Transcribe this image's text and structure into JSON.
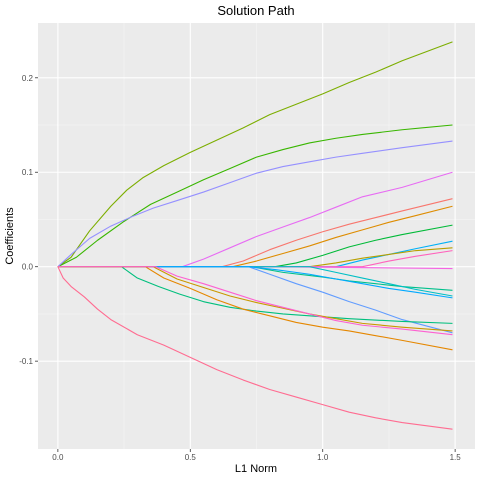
{
  "chart_data": {
    "type": "line",
    "title": "Solution Path",
    "xlabel": "L1 Norm",
    "ylabel": "Coefficients",
    "xlim": [
      -0.075,
      1.575
    ],
    "ylim": [
      -0.193,
      0.258
    ],
    "x_ticks": [
      0,
      0.5,
      1,
      1.5
    ],
    "x_tick_labels": [
      "0.0",
      "0.5",
      "1.0",
      "1.5"
    ],
    "y_ticks": [
      -0.1,
      0,
      0.1,
      0.2
    ],
    "y_tick_labels": [
      "-0.1",
      "0.0",
      "0.1",
      "0.2"
    ],
    "grid": true,
    "legend": "none",
    "colors": {
      "panel_bg": "#ebebeb",
      "grid_major": "#ffffff",
      "grid_minor": "#f5f5f5"
    },
    "series": [
      {
        "color": "#7CAE00",
        "points": [
          [
            0,
            0
          ],
          [
            0.05,
            0.01
          ],
          [
            0.12,
            0.038
          ],
          [
            0.2,
            0.064
          ],
          [
            0.26,
            0.081
          ],
          [
            0.32,
            0.094
          ],
          [
            0.4,
            0.107
          ],
          [
            0.5,
            0.121
          ],
          [
            0.6,
            0.134
          ],
          [
            0.7,
            0.147
          ],
          [
            0.8,
            0.161
          ],
          [
            0.9,
            0.172
          ],
          [
            1.0,
            0.183
          ],
          [
            1.1,
            0.195
          ],
          [
            1.2,
            0.206
          ],
          [
            1.3,
            0.218
          ],
          [
            1.49,
            0.238
          ]
        ]
      },
      {
        "color": "#39B600",
        "points": [
          [
            0,
            0
          ],
          [
            0.07,
            0.01
          ],
          [
            0.15,
            0.028
          ],
          [
            0.25,
            0.048
          ],
          [
            0.35,
            0.066
          ],
          [
            0.45,
            0.079
          ],
          [
            0.55,
            0.092
          ],
          [
            0.65,
            0.104
          ],
          [
            0.75,
            0.116
          ],
          [
            0.85,
            0.124
          ],
          [
            0.95,
            0.131
          ],
          [
            1.05,
            0.136
          ],
          [
            1.15,
            0.14
          ],
          [
            1.3,
            0.145
          ],
          [
            1.49,
            0.15
          ]
        ]
      },
      {
        "color": "#9590FF",
        "points": [
          [
            0,
            0
          ],
          [
            0.05,
            0.013
          ],
          [
            0.12,
            0.03
          ],
          [
            0.2,
            0.043
          ],
          [
            0.28,
            0.053
          ],
          [
            0.36,
            0.062
          ],
          [
            0.45,
            0.07
          ],
          [
            0.55,
            0.079
          ],
          [
            0.65,
            0.089
          ],
          [
            0.75,
            0.099
          ],
          [
            0.85,
            0.106
          ],
          [
            0.95,
            0.111
          ],
          [
            1.05,
            0.116
          ],
          [
            1.15,
            0.12
          ],
          [
            1.3,
            0.126
          ],
          [
            1.49,
            0.133
          ]
        ]
      },
      {
        "color": "#E76BF3",
        "points": [
          [
            0,
            0
          ],
          [
            0.47,
            0
          ],
          [
            0.55,
            0.008
          ],
          [
            0.65,
            0.02
          ],
          [
            0.75,
            0.032
          ],
          [
            0.85,
            0.042
          ],
          [
            0.95,
            0.052
          ],
          [
            1.05,
            0.063
          ],
          [
            1.15,
            0.074
          ],
          [
            1.3,
            0.084
          ],
          [
            1.49,
            0.1
          ]
        ]
      },
      {
        "color": "#F8766D",
        "points": [
          [
            0,
            0
          ],
          [
            0.62,
            0
          ],
          [
            0.7,
            0.006
          ],
          [
            0.8,
            0.018
          ],
          [
            0.9,
            0.028
          ],
          [
            1.0,
            0.037
          ],
          [
            1.1,
            0.045
          ],
          [
            1.2,
            0.052
          ],
          [
            1.3,
            0.059
          ],
          [
            1.49,
            0.072
          ]
        ]
      },
      {
        "color": "#DE8C00",
        "points": [
          [
            0,
            0
          ],
          [
            0.66,
            0
          ],
          [
            0.75,
            0.006
          ],
          [
            0.85,
            0.014
          ],
          [
            0.95,
            0.022
          ],
          [
            1.05,
            0.031
          ],
          [
            1.15,
            0.039
          ],
          [
            1.25,
            0.047
          ],
          [
            1.35,
            0.054
          ],
          [
            1.49,
            0.064
          ]
        ]
      },
      {
        "color": "#00BA38",
        "points": [
          [
            0,
            0
          ],
          [
            0.82,
            0
          ],
          [
            0.9,
            0.004
          ],
          [
            1.0,
            0.012
          ],
          [
            1.1,
            0.021
          ],
          [
            1.2,
            0.028
          ],
          [
            1.3,
            0.034
          ],
          [
            1.49,
            0.044
          ]
        ]
      },
      {
        "color": "#00B0F6",
        "points": [
          [
            0,
            0
          ],
          [
            1.05,
            0
          ],
          [
            1.15,
            0.007
          ],
          [
            1.25,
            0.013
          ],
          [
            1.35,
            0.019
          ],
          [
            1.49,
            0.027
          ]
        ]
      },
      {
        "color": "#B79F00",
        "points": [
          [
            0,
            0
          ],
          [
            0.95,
            0
          ],
          [
            1.05,
            0.004
          ],
          [
            1.15,
            0.009
          ],
          [
            1.25,
            0.013
          ],
          [
            1.35,
            0.017
          ],
          [
            1.49,
            0.02
          ]
        ]
      },
      {
        "color": "#FF62BC",
        "points": [
          [
            0,
            0
          ],
          [
            1.15,
            0
          ],
          [
            1.25,
            0.006
          ],
          [
            1.35,
            0.011
          ],
          [
            1.49,
            0.017
          ]
        ]
      },
      {
        "color": "#F564E3",
        "points": [
          [
            0,
            0
          ],
          [
            0.8,
            0
          ],
          [
            1.49,
            -0.002
          ]
        ]
      },
      {
        "color": "#00C08B",
        "points": [
          [
            0,
            0
          ],
          [
            0.73,
            0
          ],
          [
            0.85,
            -0.006
          ],
          [
            1.0,
            -0.011
          ],
          [
            1.1,
            -0.015
          ],
          [
            1.2,
            -0.018
          ],
          [
            1.3,
            -0.021
          ],
          [
            1.49,
            -0.025
          ]
        ]
      },
      {
        "color": "#00BFC4",
        "points": [
          [
            0,
            0
          ],
          [
            0.95,
            0
          ],
          [
            1.05,
            -0.006
          ],
          [
            1.15,
            -0.012
          ],
          [
            1.25,
            -0.018
          ],
          [
            1.35,
            -0.024
          ],
          [
            1.49,
            -0.031
          ]
        ]
      },
      {
        "color": "#619CFF",
        "points": [
          [
            0,
            0
          ],
          [
            0.72,
            0
          ],
          [
            0.8,
            -0.008
          ],
          [
            0.9,
            -0.018
          ],
          [
            1.0,
            -0.027
          ],
          [
            1.1,
            -0.037
          ],
          [
            1.2,
            -0.046
          ],
          [
            1.3,
            -0.056
          ],
          [
            1.49,
            -0.07
          ]
        ]
      },
      {
        "color": "#00A9FF",
        "points": [
          [
            0,
            0
          ],
          [
            0.72,
            0
          ],
          [
            0.82,
            -0.003
          ],
          [
            0.95,
            -0.008
          ],
          [
            1.05,
            -0.013
          ],
          [
            1.15,
            -0.018
          ],
          [
            1.25,
            -0.023
          ],
          [
            1.35,
            -0.027
          ],
          [
            1.49,
            -0.033
          ]
        ]
      },
      {
        "color": "#00BF7D",
        "points": [
          [
            0,
            0
          ],
          [
            0.24,
            0
          ],
          [
            0.3,
            -0.012
          ],
          [
            0.38,
            -0.021
          ],
          [
            0.46,
            -0.029
          ],
          [
            0.55,
            -0.037
          ],
          [
            0.65,
            -0.043
          ],
          [
            0.75,
            -0.047
          ],
          [
            0.85,
            -0.05
          ],
          [
            0.95,
            -0.052
          ],
          [
            1.1,
            -0.055
          ],
          [
            1.3,
            -0.058
          ],
          [
            1.49,
            -0.06
          ]
        ]
      },
      {
        "color": "#E58700",
        "points": [
          [
            0,
            0
          ],
          [
            0.33,
            0
          ],
          [
            0.4,
            -0.012
          ],
          [
            0.5,
            -0.023
          ],
          [
            0.6,
            -0.035
          ],
          [
            0.7,
            -0.045
          ],
          [
            0.8,
            -0.052
          ],
          [
            0.9,
            -0.059
          ],
          [
            1.0,
            -0.064
          ],
          [
            1.1,
            -0.068
          ],
          [
            1.2,
            -0.073
          ],
          [
            1.3,
            -0.078
          ],
          [
            1.49,
            -0.088
          ]
        ]
      },
      {
        "color": "#C99800",
        "points": [
          [
            0,
            0
          ],
          [
            0.36,
            0
          ],
          [
            0.45,
            -0.013
          ],
          [
            0.55,
            -0.022
          ],
          [
            0.65,
            -0.031
          ],
          [
            0.75,
            -0.038
          ],
          [
            0.85,
            -0.044
          ],
          [
            0.95,
            -0.05
          ],
          [
            1.05,
            -0.055
          ],
          [
            1.15,
            -0.06
          ],
          [
            1.3,
            -0.064
          ],
          [
            1.49,
            -0.068
          ]
        ]
      },
      {
        "color": "#FD61D1",
        "points": [
          [
            0,
            0
          ],
          [
            0.37,
            0
          ],
          [
            0.45,
            -0.01
          ],
          [
            0.55,
            -0.018
          ],
          [
            0.65,
            -0.027
          ],
          [
            0.75,
            -0.036
          ],
          [
            0.85,
            -0.043
          ],
          [
            0.95,
            -0.05
          ],
          [
            1.05,
            -0.057
          ],
          [
            1.15,
            -0.062
          ],
          [
            1.3,
            -0.066
          ],
          [
            1.49,
            -0.072
          ]
        ]
      },
      {
        "color": "#FF6C91",
        "points": [
          [
            0,
            0
          ],
          [
            0.02,
            -0.012
          ],
          [
            0.05,
            -0.021
          ],
          [
            0.1,
            -0.032
          ],
          [
            0.15,
            -0.045
          ],
          [
            0.2,
            -0.056
          ],
          [
            0.3,
            -0.072
          ],
          [
            0.4,
            -0.083
          ],
          [
            0.5,
            -0.096
          ],
          [
            0.6,
            -0.109
          ],
          [
            0.7,
            -0.12
          ],
          [
            0.8,
            -0.13
          ],
          [
            0.9,
            -0.138
          ],
          [
            1.0,
            -0.146
          ],
          [
            1.1,
            -0.154
          ],
          [
            1.2,
            -0.16
          ],
          [
            1.3,
            -0.165
          ],
          [
            1.49,
            -0.172
          ]
        ]
      }
    ]
  }
}
